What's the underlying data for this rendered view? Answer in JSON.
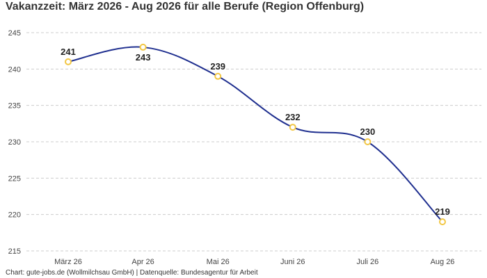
{
  "title": "Vakanzzeit: März 2026 - Aug 2026 für alle Berufe (Region Offenburg)",
  "footer": "Chart: gute-jobs.de (Wollmilchsau GmbH) | Datenquelle: Bundesagentur für Arbeit",
  "colors": {
    "line": "#1f2f8f",
    "marker": "#f2c744",
    "grid": "#cccccc"
  },
  "chart_data": {
    "type": "line",
    "title": "Vakanzzeit: März 2026 - Aug 2026 für alle Berufe (Region Offenburg)",
    "categories": [
      "März 26",
      "Apr 26",
      "Mai 26",
      "Juni 26",
      "Juli 26",
      "Aug 26"
    ],
    "series": [
      {
        "values": [
          241,
          243,
          239,
          232,
          230,
          219
        ]
      }
    ],
    "labels": [
      "241",
      "243",
      "239",
      "232",
      "230",
      "219"
    ],
    "yticks": [
      215,
      220,
      225,
      230,
      235,
      240,
      245
    ],
    "ylim": [
      215,
      245
    ],
    "grid": "horizontal dashed",
    "legend": "none"
  }
}
